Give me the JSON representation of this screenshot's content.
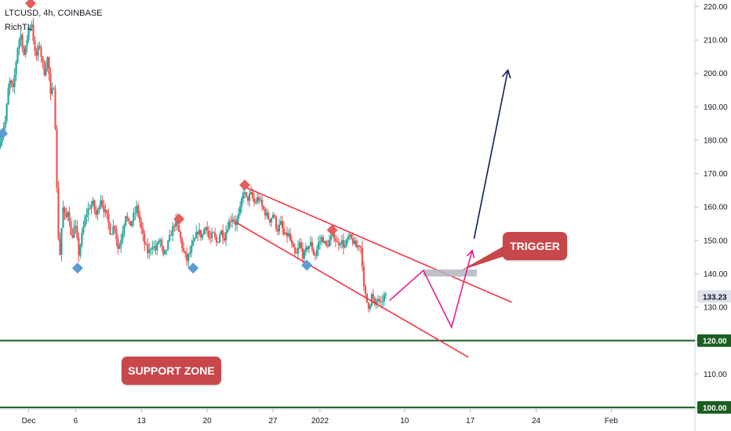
{
  "header": {
    "title": "LTCUSD, 4h, COINBASE",
    "indicator": "RichTL"
  },
  "annotations": {
    "trigger": "TRIGGER",
    "support": "SUPPORT ZONE"
  },
  "colors": {
    "up": "#26a69a",
    "down": "#ef5350",
    "channel": "#f23645",
    "support": "#1b5e20",
    "path": "#e91e8c",
    "target": "#0d1e5c",
    "zone": "#b2b5be",
    "marker_high": "#e95c5c",
    "marker_low": "#5b9bd5"
  },
  "chart_data": {
    "type": "candlestick",
    "symbol": "LTCUSD",
    "timeframe": "4h",
    "exchange": "COINBASE",
    "y_axis": {
      "ticks": [
        100,
        110,
        120,
        130,
        140,
        150,
        160,
        170,
        180,
        190,
        200,
        210,
        220
      ],
      "tick_labels": [
        "100.00",
        "110.00",
        "120.00",
        "130.00",
        "140.00",
        "150.00",
        "160.00",
        "170.00",
        "180.00",
        "190.00",
        "200.00",
        "210.00",
        "220.00"
      ],
      "range": [
        99.5,
        222
      ]
    },
    "x_axis": {
      "ticks": [
        {
          "label": "Dec",
          "day": 0
        },
        {
          "label": "6",
          "day": 5
        },
        {
          "label": "13",
          "day": 12
        },
        {
          "label": "20",
          "day": 19
        },
        {
          "label": "27",
          "day": 26
        },
        {
          "label": "2022",
          "day": 31
        },
        {
          "label": "10",
          "day": 40
        },
        {
          "label": "17",
          "day": 47
        },
        {
          "label": "24",
          "day": 54
        },
        {
          "label": "Feb",
          "day": 62
        }
      ],
      "range_days": [
        -3.05,
        70.9
      ]
    },
    "price_path": [
      [
        -3.0,
        178
      ],
      [
        -2.8,
        181
      ],
      [
        -2.3,
        186
      ],
      [
        -1.9,
        198
      ],
      [
        -1.5,
        195
      ],
      [
        -1.0,
        208
      ],
      [
        -0.7,
        212
      ],
      [
        -0.3,
        205
      ],
      [
        0.2,
        214
      ],
      [
        0.5,
        215
      ],
      [
        0.9,
        204
      ],
      [
        1.3,
        209
      ],
      [
        1.8,
        200
      ],
      [
        2.2,
        205
      ],
      [
        2.5,
        193
      ],
      [
        2.9,
        197
      ],
      [
        3.1,
        172
      ],
      [
        3.3,
        152
      ],
      [
        3.5,
        146
      ],
      [
        3.8,
        160
      ],
      [
        4.1,
        156
      ],
      [
        4.4,
        160
      ],
      [
        4.7,
        150
      ],
      [
        5.1,
        155
      ],
      [
        5.5,
        146
      ],
      [
        5.8,
        151
      ],
      [
        6.2,
        157
      ],
      [
        6.6,
        160
      ],
      [
        7.0,
        161
      ],
      [
        7.4,
        157
      ],
      [
        7.8,
        163
      ],
      [
        8.1,
        160
      ],
      [
        8.5,
        157
      ],
      [
        8.9,
        152
      ],
      [
        9.3,
        155
      ],
      [
        9.7,
        147
      ],
      [
        10.1,
        152
      ],
      [
        10.5,
        158
      ],
      [
        10.9,
        154
      ],
      [
        11.3,
        157
      ],
      [
        11.7,
        160
      ],
      [
        12.1,
        154
      ],
      [
        12.5,
        149
      ],
      [
        12.9,
        146
      ],
      [
        13.3,
        149
      ],
      [
        13.7,
        147
      ],
      [
        14.1,
        151
      ],
      [
        14.5,
        145
      ],
      [
        14.9,
        148
      ],
      [
        15.3,
        152
      ],
      [
        15.8,
        156
      ],
      [
        16.2,
        152
      ],
      [
        16.6,
        147
      ],
      [
        17.0,
        144
      ],
      [
        17.4,
        147
      ],
      [
        17.8,
        150
      ],
      [
        18.2,
        153
      ],
      [
        18.6,
        151
      ],
      [
        19.0,
        155
      ],
      [
        19.4,
        150
      ],
      [
        19.8,
        152
      ],
      [
        20.2,
        149
      ],
      [
        20.6,
        153
      ],
      [
        21.0,
        151
      ],
      [
        21.4,
        155
      ],
      [
        21.8,
        157
      ],
      [
        22.2,
        155
      ],
      [
        22.6,
        158
      ],
      [
        23.0,
        165
      ],
      [
        23.4,
        162
      ],
      [
        23.8,
        164
      ],
      [
        24.2,
        161
      ],
      [
        24.6,
        163
      ],
      [
        25.0,
        160
      ],
      [
        25.4,
        158
      ],
      [
        25.8,
        156
      ],
      [
        26.2,
        158
      ],
      [
        26.6,
        153
      ],
      [
        27.0,
        155
      ],
      [
        27.4,
        151
      ],
      [
        27.8,
        152
      ],
      [
        28.2,
        148
      ],
      [
        28.6,
        145
      ],
      [
        29.0,
        149
      ],
      [
        29.4,
        145
      ],
      [
        29.8,
        148
      ],
      [
        30.2,
        149
      ],
      [
        30.6,
        145
      ],
      [
        31.0,
        149
      ],
      [
        31.4,
        151
      ],
      [
        31.8,
        148
      ],
      [
        32.2,
        150
      ],
      [
        32.6,
        152
      ],
      [
        33.0,
        149
      ],
      [
        33.4,
        150
      ],
      [
        33.8,
        148
      ],
      [
        34.2,
        151
      ],
      [
        34.6,
        150
      ],
      [
        35.0,
        148
      ],
      [
        35.4,
        149
      ],
      [
        35.6,
        147
      ],
      [
        35.8,
        136
      ],
      [
        36.1,
        132
      ],
      [
        36.4,
        130
      ],
      [
        36.7,
        134
      ],
      [
        37.0,
        130
      ],
      [
        37.3,
        133
      ],
      [
        37.6,
        130
      ],
      [
        37.9,
        133
      ],
      [
        38.1,
        133.23
      ]
    ],
    "last_price": 133.23,
    "last_price_label": "133.23",
    "support_level": 120.0,
    "support_label": "120.00",
    "lower_level": 100.0,
    "lower_label": "100.00",
    "channel": {
      "upper": [
        [
          23.0,
          166.0
        ],
        [
          51.4,
          131.5
        ]
      ],
      "lower": [
        [
          22.0,
          155.5
        ],
        [
          46.8,
          115.0
        ]
      ]
    },
    "trigger_zone": {
      "day_range": [
        42.0,
        47.7
      ],
      "price_range": [
        139.2,
        141.3
      ]
    },
    "projection": [
      [
        38.4,
        132
      ],
      [
        42.0,
        141
      ],
      [
        45.0,
        124
      ],
      [
        47.2,
        147
      ]
    ],
    "target_arrow": [
      [
        47.4,
        150.5
      ],
      [
        51.0,
        201
      ]
    ],
    "markers": {
      "high": [
        [
          0.2,
          221
        ],
        [
          23.0,
          166.6
        ],
        [
          16.0,
          156.4
        ],
        [
          32.3,
          153.1
        ]
      ],
      "low": [
        [
          -2.8,
          182
        ],
        [
          5.2,
          141.7
        ],
        [
          17.5,
          141.7
        ],
        [
          29.6,
          142.6
        ]
      ]
    }
  }
}
